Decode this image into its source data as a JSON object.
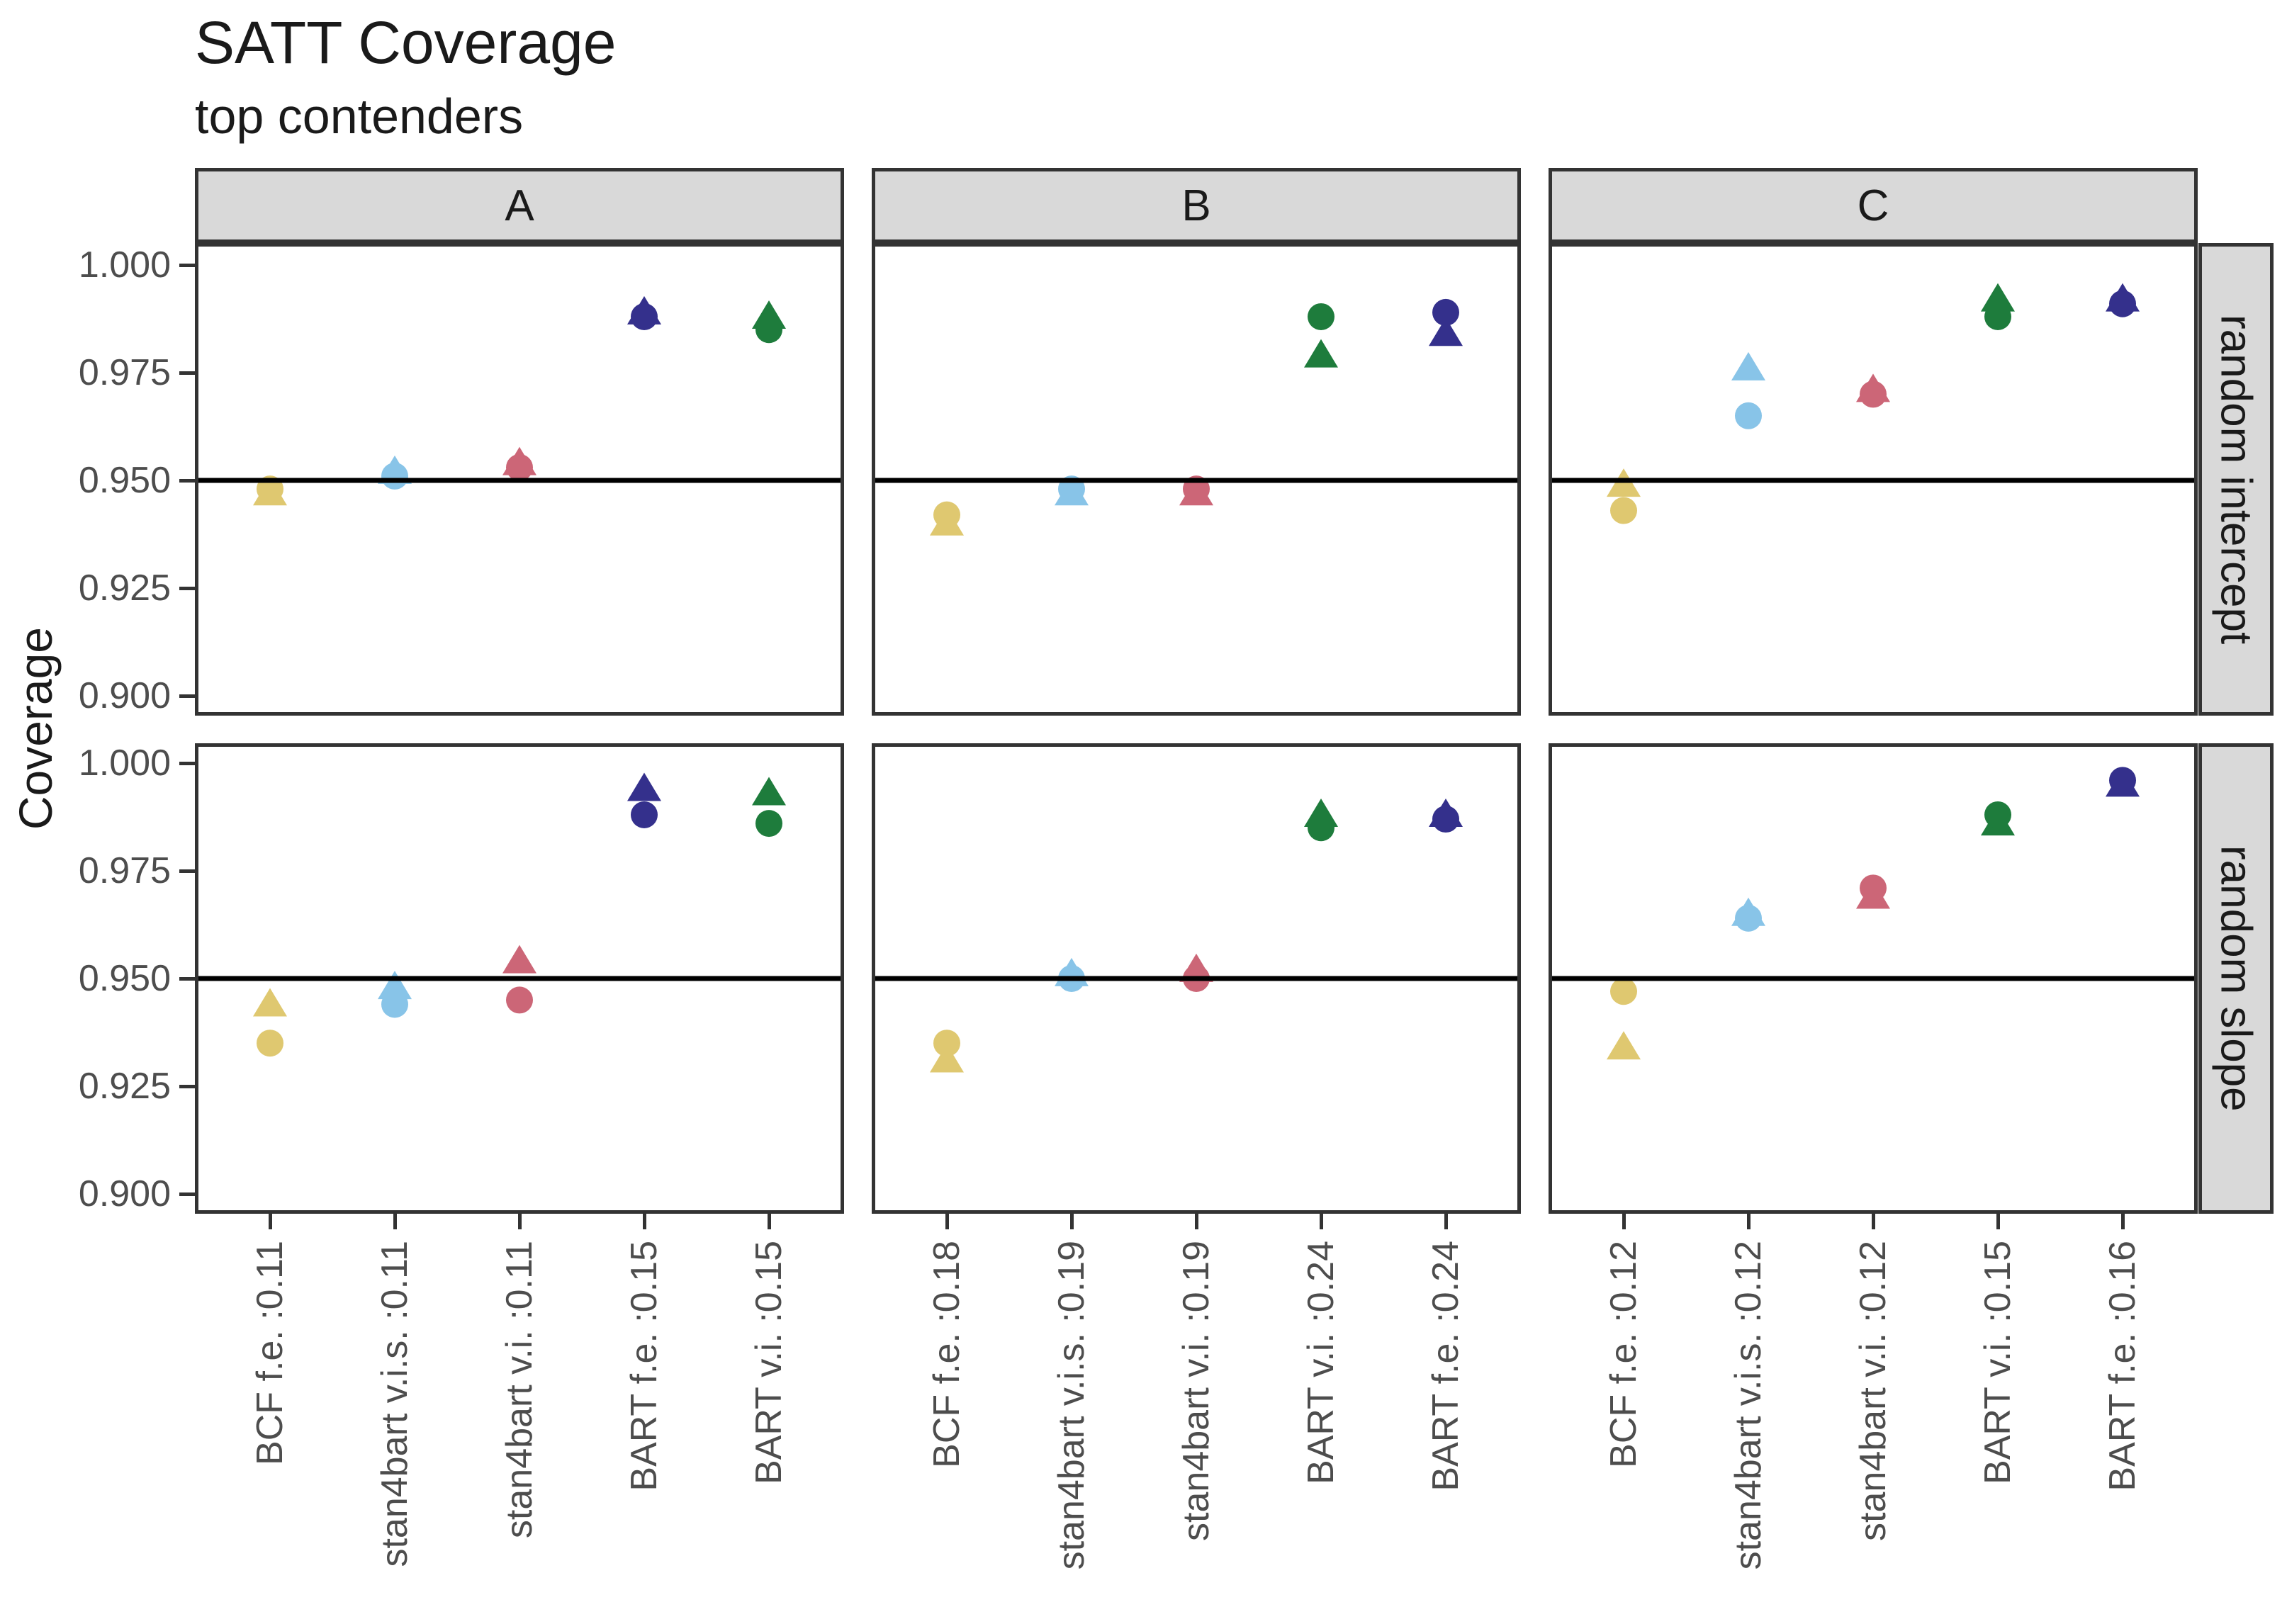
{
  "chart_data": {
    "type": "scatter",
    "title": "SATT Coverage",
    "subtitle": "top contenders",
    "ylabel": "Coverage",
    "ylim": [
      0.895,
      1.005
    ],
    "yticks": [
      1.0,
      0.975,
      0.95,
      0.925,
      0.9
    ],
    "ytick_labels": [
      "1.000",
      "0.975",
      "0.950",
      "0.925",
      "0.900"
    ],
    "reference_line_y": 0.95,
    "grid": "off",
    "legend": "none",
    "facet_rows": [
      "random intercept",
      "random slope"
    ],
    "facet_cols": [
      "A",
      "B",
      "C"
    ],
    "marker_shapes": [
      "circle",
      "triangle"
    ],
    "palette": {
      "sand": "#DFC870",
      "cyan": "#88C4E8",
      "rose": "#CC6677",
      "indigo": "#34308C",
      "green": "#1E7C3C"
    },
    "strip_fill": "#d9d9d9",
    "panel_border_color": "#333333",
    "reference_line_color": "#000000",
    "panels": [
      {
        "row": "random intercept",
        "col": "A",
        "categories": [
          "BCF f.e. :0.11",
          "stan4bart v.i.s. :0.11",
          "stan4bart v.i. :0.11",
          "BART f.e. :0.15",
          "BART v.i. :0.15"
        ],
        "color_keys": [
          "sand",
          "cyan",
          "rose",
          "indigo",
          "green"
        ],
        "circle": [
          0.948,
          0.951,
          0.953,
          0.988,
          0.985
        ],
        "triangle": [
          0.947,
          0.952,
          0.954,
          0.989,
          0.988
        ]
      },
      {
        "row": "random intercept",
        "col": "B",
        "categories": [
          "BCF f.e. :0.18",
          "stan4bart v.i.s. :0.19",
          "stan4bart v.i. :0.19",
          "BART v.i. :0.24",
          "BART f.e. :0.24"
        ],
        "color_keys": [
          "sand",
          "cyan",
          "rose",
          "green",
          "indigo"
        ],
        "circle": [
          0.942,
          0.948,
          0.948,
          0.988,
          0.989
        ],
        "triangle": [
          0.94,
          0.947,
          0.947,
          0.979,
          0.984
        ]
      },
      {
        "row": "random intercept",
        "col": "C",
        "categories": [
          "BCF f.e. :0.12",
          "stan4bart v.i.s. :0.12",
          "stan4bart v.i. :0.12",
          "BART v.i. :0.15",
          "BART f.e. :0.16"
        ],
        "color_keys": [
          "sand",
          "cyan",
          "rose",
          "green",
          "indigo"
        ],
        "circle": [
          0.943,
          0.965,
          0.97,
          0.988,
          0.991
        ],
        "triangle": [
          0.949,
          0.976,
          0.971,
          0.992,
          0.992
        ]
      },
      {
        "row": "random slope",
        "col": "A",
        "categories": [
          "BCF f.e. :0.11",
          "stan4bart v.i.s. :0.11",
          "stan4bart v.i. :0.11",
          "BART f.e. :0.15",
          "BART v.i. :0.15"
        ],
        "color_keys": [
          "sand",
          "cyan",
          "rose",
          "indigo",
          "green"
        ],
        "circle": [
          0.935,
          0.944,
          0.945,
          0.988,
          0.986
        ],
        "triangle": [
          0.944,
          0.948,
          0.954,
          0.994,
          0.993
        ]
      },
      {
        "row": "random slope",
        "col": "B",
        "categories": [
          "BCF f.e. :0.18",
          "stan4bart v.i.s. :0.19",
          "stan4bart v.i. :0.19",
          "BART v.i. :0.24",
          "BART f.e. :0.24"
        ],
        "color_keys": [
          "sand",
          "cyan",
          "rose",
          "green",
          "indigo"
        ],
        "circle": [
          0.935,
          0.95,
          0.95,
          0.985,
          0.987
        ],
        "triangle": [
          0.931,
          0.951,
          0.952,
          0.988,
          0.988
        ]
      },
      {
        "row": "random slope",
        "col": "C",
        "categories": [
          "BCF f.e. :0.12",
          "stan4bart v.i.s. :0.12",
          "stan4bart v.i. :0.12",
          "BART v.i. :0.15",
          "BART f.e. :0.16"
        ],
        "color_keys": [
          "sand",
          "cyan",
          "rose",
          "green",
          "indigo"
        ],
        "circle": [
          0.947,
          0.964,
          0.971,
          0.988,
          0.996
        ],
        "triangle": [
          0.934,
          0.965,
          0.969,
          0.986,
          0.995
        ]
      }
    ]
  }
}
